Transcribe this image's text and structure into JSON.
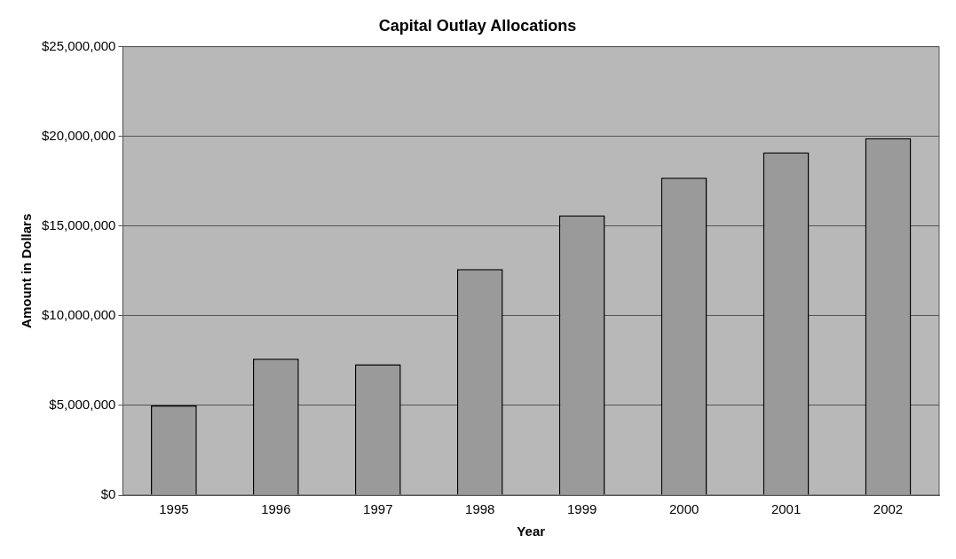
{
  "chart_data": {
    "type": "bar",
    "title": "Capital Outlay Allocations",
    "xlabel": "Year",
    "ylabel": "Amount in Dollars",
    "categories": [
      "1995",
      "1996",
      "1997",
      "1998",
      "1999",
      "2000",
      "2001",
      "2002"
    ],
    "values": [
      5000000,
      7600000,
      7300000,
      12600000,
      15600000,
      17700000,
      19100000,
      19900000
    ],
    "color": "#9a9a9a",
    "ylim": [
      0,
      25000000
    ],
    "yticks": [
      {
        "value": 0,
        "label": "$0"
      },
      {
        "value": 5000000,
        "label": "$5,000,000"
      },
      {
        "value": 10000000,
        "label": "$10,000,000"
      },
      {
        "value": 15000000,
        "label": "$15,000,000"
      },
      {
        "value": 20000000,
        "label": "$20,000,000"
      },
      {
        "value": 25000000,
        "label": "$25,000,000"
      }
    ],
    "grid": "y",
    "legend": false
  }
}
